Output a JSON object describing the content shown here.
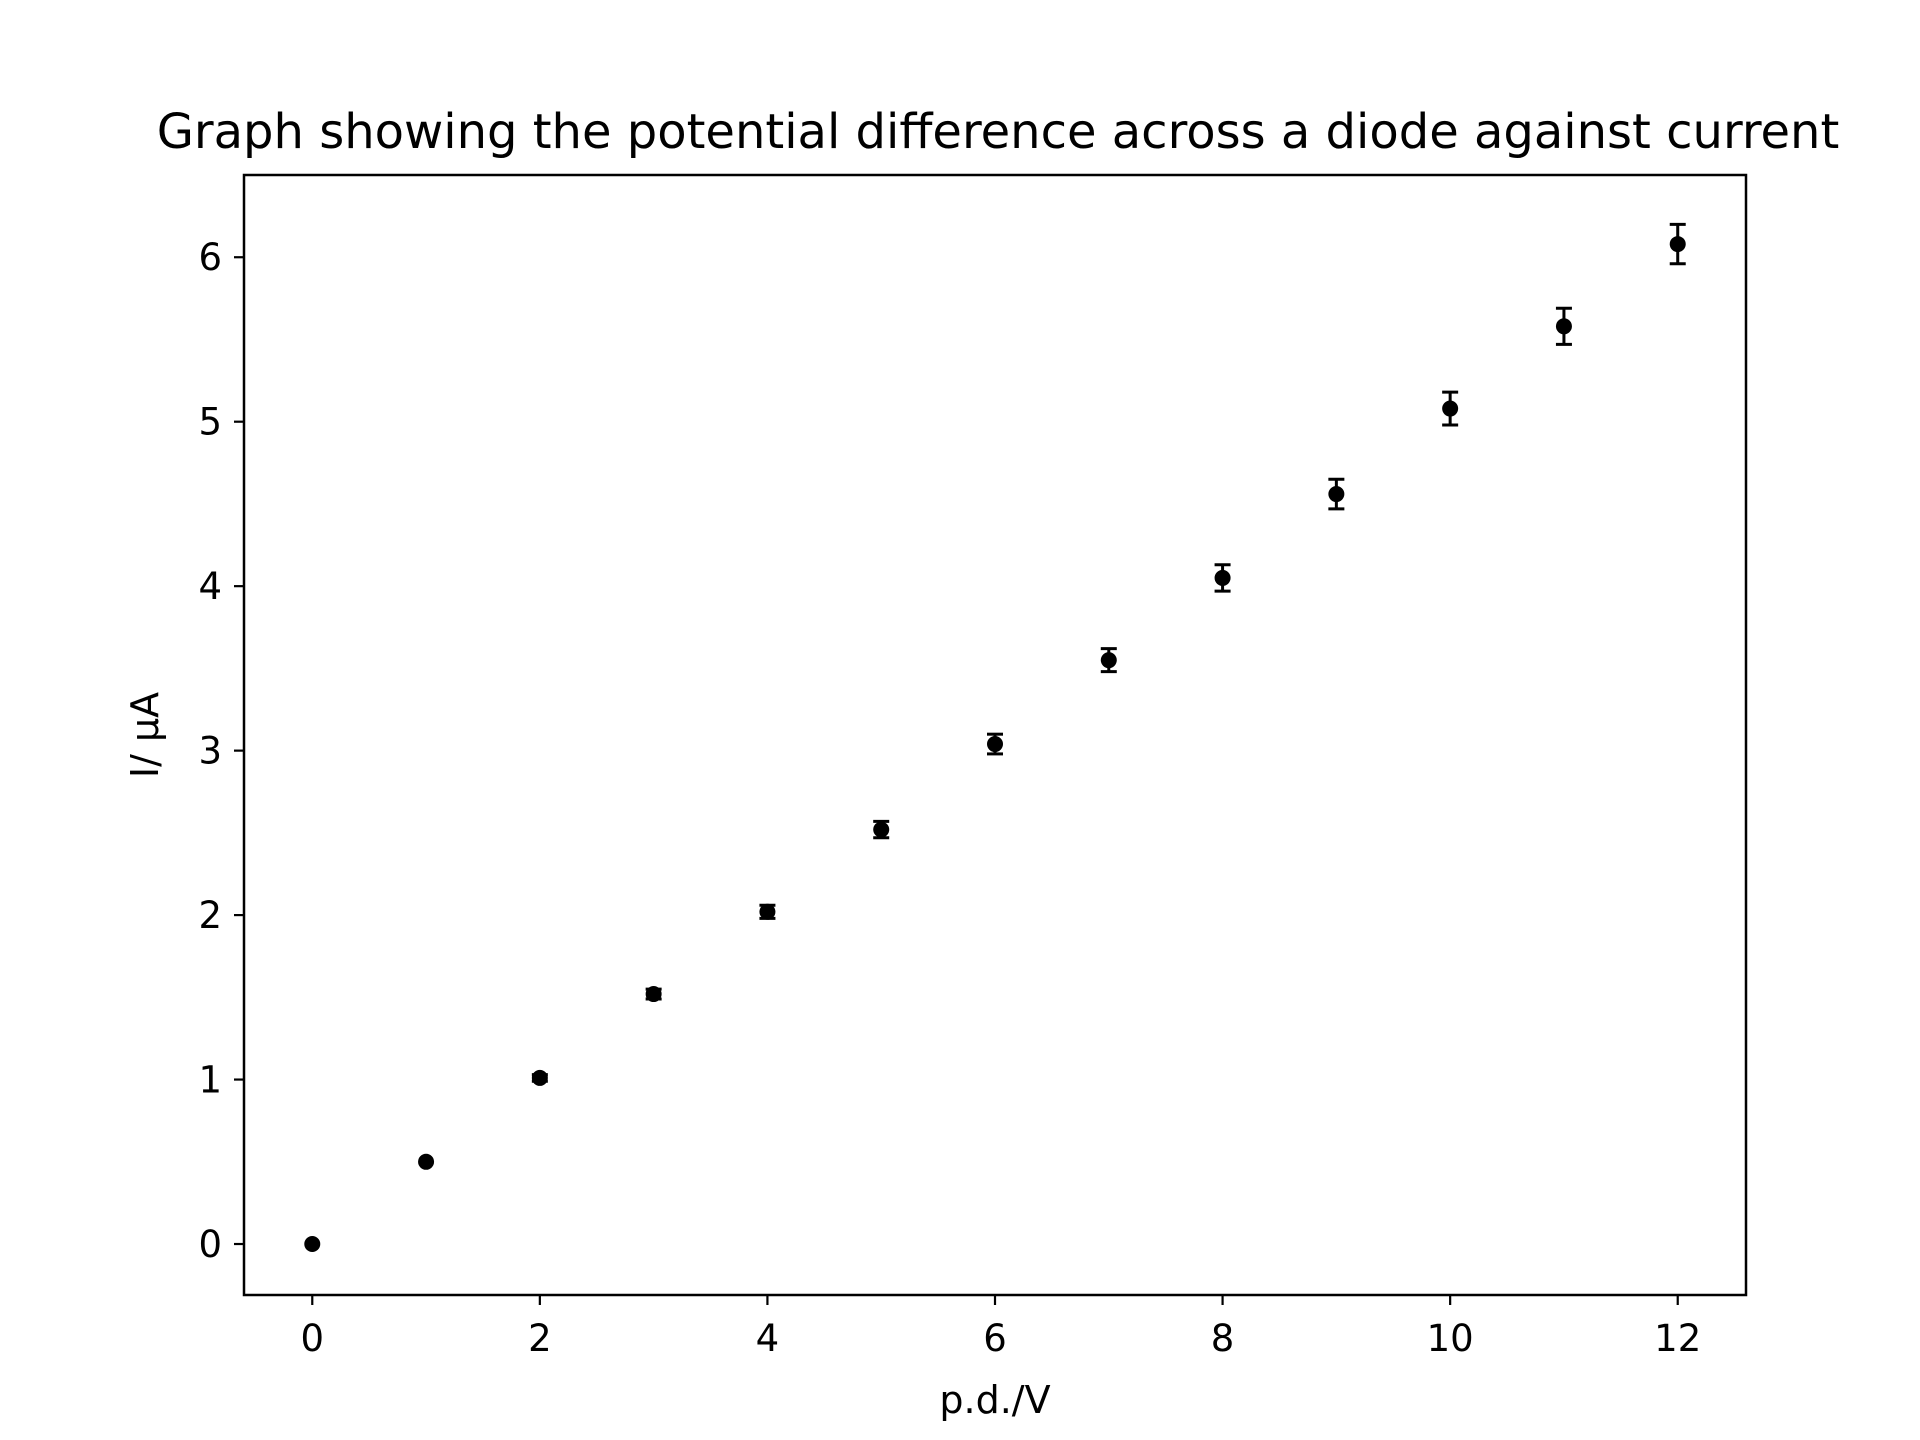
{
  "chart_data": {
    "type": "scatter",
    "title": "Graph showing the potential difference across a diode against current",
    "xlabel": "p.d./V",
    "ylabel": "I/ μA",
    "xlim": [
      -0.6,
      12.6
    ],
    "ylim": [
      -0.31,
      6.5
    ],
    "xticks": [
      0,
      2,
      4,
      6,
      8,
      10,
      12
    ],
    "yticks": [
      0,
      1,
      2,
      3,
      4,
      5,
      6
    ],
    "grid": false,
    "marker_color": "#000000",
    "series": [
      {
        "x": [
          0,
          1,
          2,
          3,
          4,
          5,
          6,
          7,
          8,
          9,
          10,
          11,
          12
        ],
        "y": [
          0.0,
          0.5,
          1.01,
          1.52,
          2.02,
          2.52,
          3.04,
          3.55,
          4.05,
          4.56,
          5.08,
          5.58,
          6.08
        ],
        "yerr": [
          0.0,
          0.0,
          0.02,
          0.03,
          0.04,
          0.05,
          0.06,
          0.07,
          0.08,
          0.09,
          0.1,
          0.11,
          0.12
        ]
      }
    ]
  }
}
